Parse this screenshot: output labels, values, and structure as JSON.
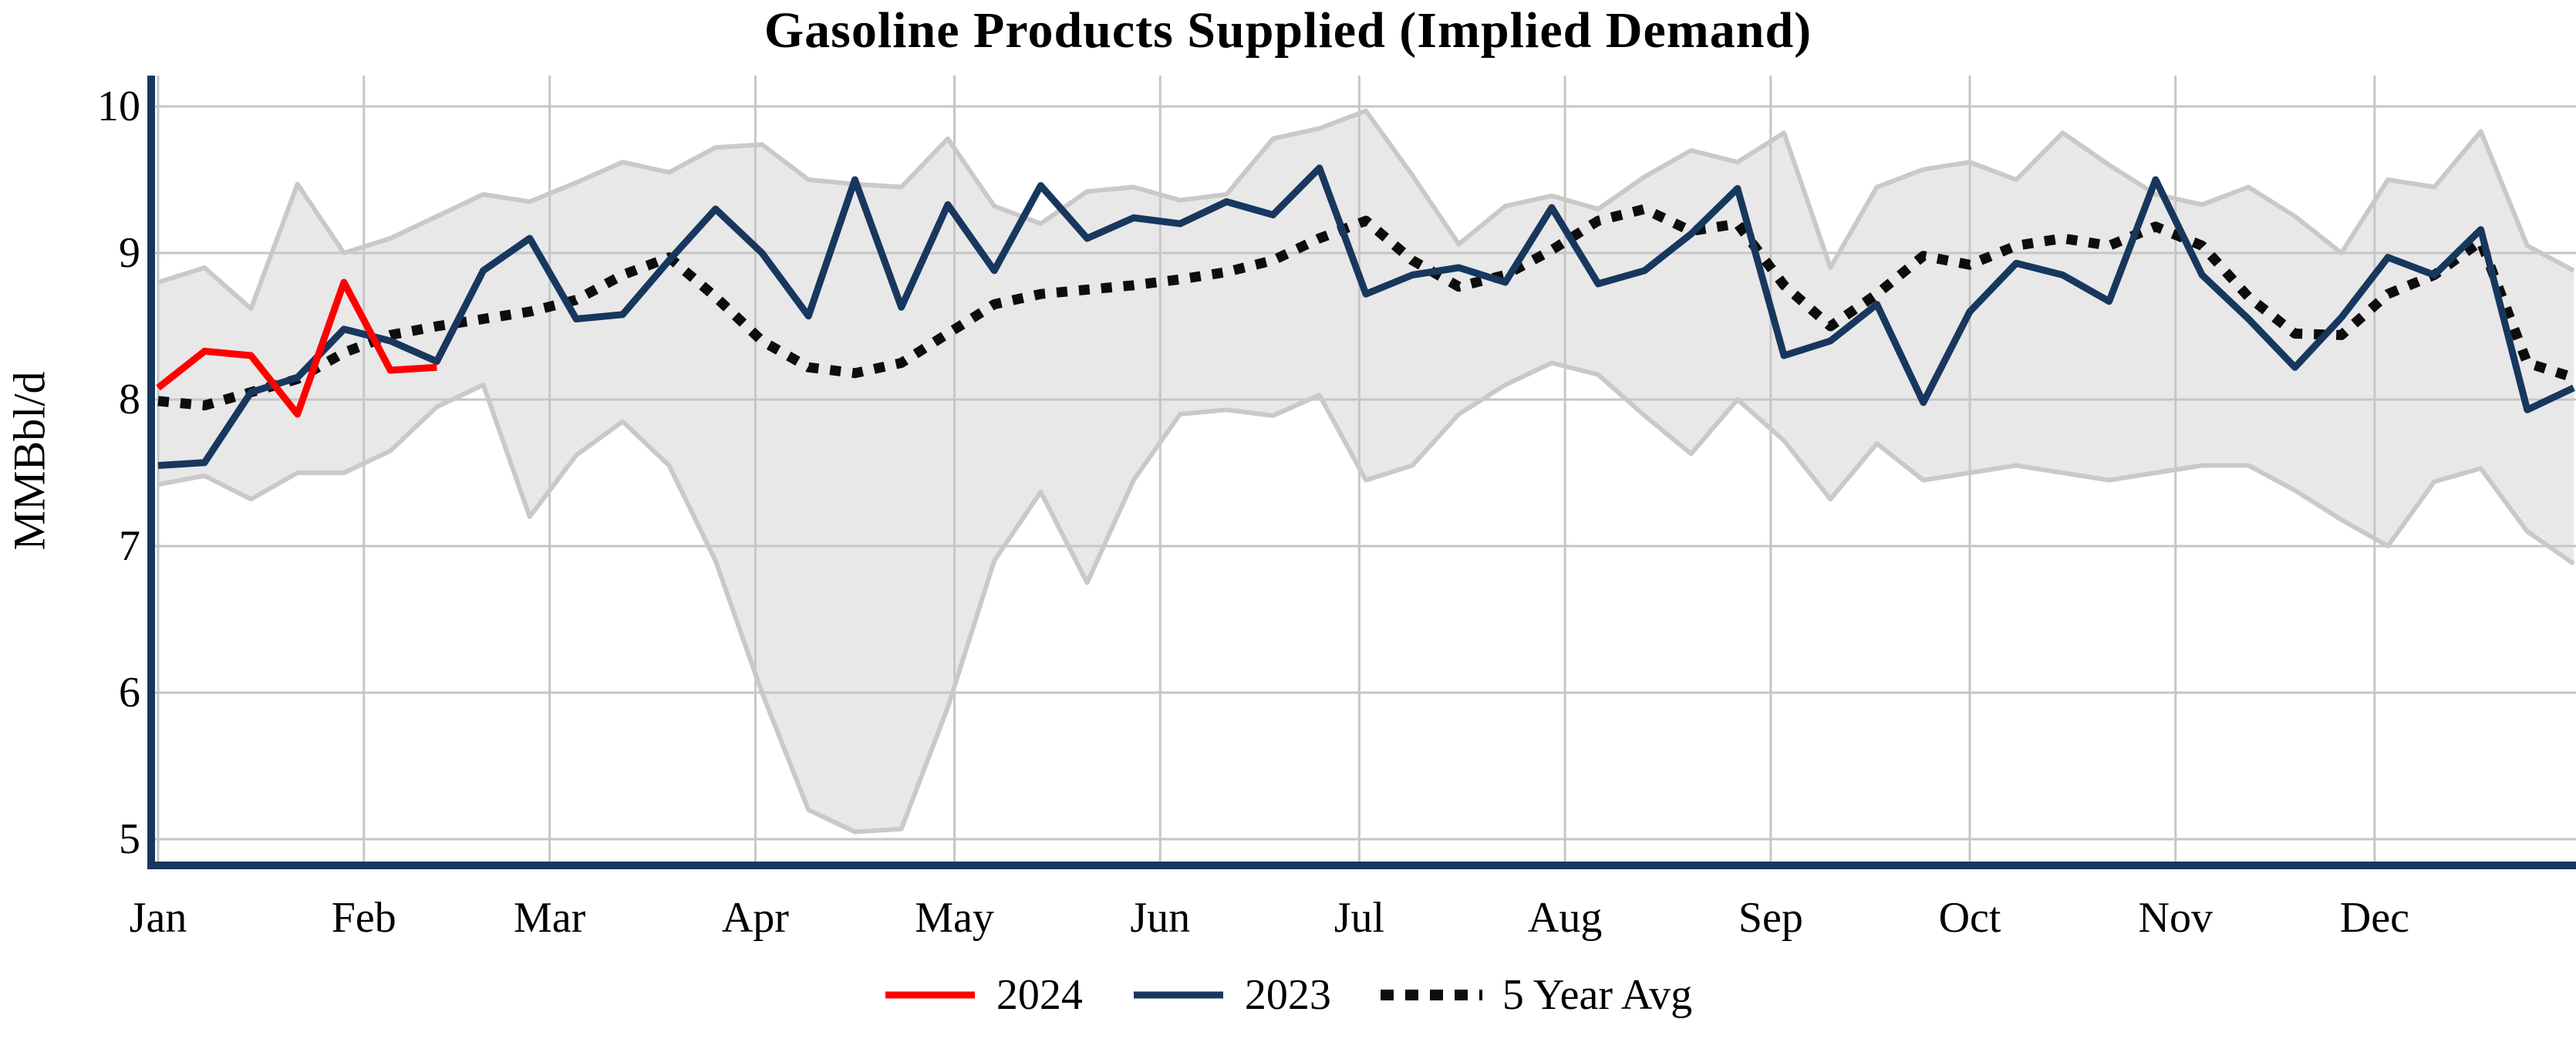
{
  "title": "Gasoline Products Supplied (Implied Demand)",
  "y_axis": {
    "label": "MMBbl/d",
    "ticks": [
      "10",
      "9",
      "8",
      "7",
      "6",
      "5"
    ]
  },
  "x_axis": {
    "months": [
      "Jan",
      "Feb",
      "Mar",
      "Apr",
      "May",
      "Jun",
      "Jul",
      "Aug",
      "Sep",
      "Oct",
      "Nov",
      "Dec"
    ]
  },
  "legend": {
    "items": [
      {
        "label": "2024",
        "style": "solid",
        "color": "#ff0000"
      },
      {
        "label": "2023",
        "style": "solid",
        "color": "#17375e"
      },
      {
        "label": "5 Year Avg",
        "style": "dotted",
        "color": "#0d0d0d"
      }
    ]
  },
  "colors": {
    "line_2024": "#ff0000",
    "line_2023": "#17375e",
    "line_avg": "#0d0d0d",
    "band_fill": "#e8e8e8",
    "band_edge": "#c9c9c9",
    "grid": "#c6c6c6",
    "axis": "#17375e",
    "background": "#ffffff"
  },
  "chart_data": {
    "type": "line",
    "title": "Gasoline Products Supplied (Implied Demand)",
    "ylabel": "MMBbl/d",
    "xlabel": "",
    "x_unit": "weekly points, Jan through Dec",
    "ylim": [
      4.6,
      10.2
    ],
    "y_ticks": [
      5,
      6,
      7,
      8,
      9,
      10
    ],
    "grid": true,
    "legend_position": "bottom-center",
    "band": {
      "name": "5 year min-max range",
      "upper": [
        8.8,
        8.9,
        8.62,
        9.47,
        9.0,
        9.1,
        9.25,
        9.4,
        9.35,
        9.48,
        9.62,
        9.55,
        9.72,
        9.74,
        9.5,
        9.47,
        9.45,
        9.78,
        9.32,
        9.2,
        9.42,
        9.45,
        9.36,
        9.4,
        9.78,
        9.85,
        9.97,
        9.53,
        9.06,
        9.32,
        9.39,
        9.3,
        9.52,
        9.7,
        9.62,
        9.82,
        8.9,
        9.45,
        9.57,
        9.62,
        9.5,
        9.82,
        9.6,
        9.4,
        9.33,
        9.45,
        9.25,
        9.0,
        9.5,
        9.45,
        9.83,
        9.05,
        8.88
      ],
      "lower": [
        7.42,
        7.48,
        7.32,
        7.5,
        7.5,
        7.65,
        7.95,
        8.1,
        7.2,
        7.62,
        7.85,
        7.55,
        6.9,
        6.0,
        5.2,
        5.05,
        5.07,
        5.9,
        6.9,
        7.37,
        6.75,
        7.45,
        7.9,
        7.93,
        7.89,
        8.03,
        7.45,
        7.55,
        7.9,
        8.1,
        8.25,
        8.17,
        7.89,
        7.63,
        8.0,
        7.72,
        7.32,
        7.7,
        7.45,
        7.5,
        7.55,
        7.5,
        7.45,
        7.5,
        7.55,
        7.55,
        7.38,
        7.18,
        7.0,
        7.44,
        7.53,
        7.1,
        6.88
      ]
    },
    "series": [
      {
        "name": "2023",
        "color": "#17375e",
        "style": "solid",
        "values": [
          7.55,
          7.57,
          8.05,
          8.15,
          8.48,
          8.4,
          8.26,
          8.88,
          9.1,
          8.55,
          8.58,
          8.95,
          9.3,
          9.0,
          8.57,
          9.5,
          8.63,
          9.33,
          8.88,
          9.46,
          9.1,
          9.24,
          9.2,
          9.35,
          9.26,
          9.58,
          8.72,
          8.85,
          8.9,
          8.8,
          9.31,
          8.79,
          8.88,
          9.13,
          9.44,
          8.3,
          8.4,
          8.65,
          7.98,
          8.6,
          8.93,
          8.85,
          8.67,
          9.5,
          8.85,
          8.55,
          8.22,
          8.56,
          8.97,
          8.85,
          9.16,
          7.93,
          8.08
        ]
      },
      {
        "name": "5 Year Avg",
        "color": "#0d0d0d",
        "style": "dotted",
        "values": [
          7.99,
          7.96,
          8.05,
          8.14,
          8.32,
          8.44,
          8.5,
          8.55,
          8.6,
          8.68,
          8.85,
          8.97,
          8.7,
          8.4,
          8.22,
          8.18,
          8.25,
          8.45,
          8.65,
          8.72,
          8.75,
          8.78,
          8.82,
          8.87,
          8.95,
          9.1,
          9.22,
          8.95,
          8.77,
          8.85,
          9.02,
          9.22,
          9.3,
          9.15,
          9.2,
          8.78,
          8.5,
          8.72,
          8.98,
          8.92,
          9.05,
          9.1,
          9.05,
          9.18,
          9.05,
          8.7,
          8.45,
          8.44,
          8.72,
          8.85,
          9.08,
          8.25,
          8.15
        ]
      },
      {
        "name": "2024",
        "color": "#ff0000",
        "style": "solid",
        "values": [
          8.08,
          8.33,
          8.3,
          7.9,
          8.8,
          8.2,
          8.22
        ]
      }
    ]
  }
}
